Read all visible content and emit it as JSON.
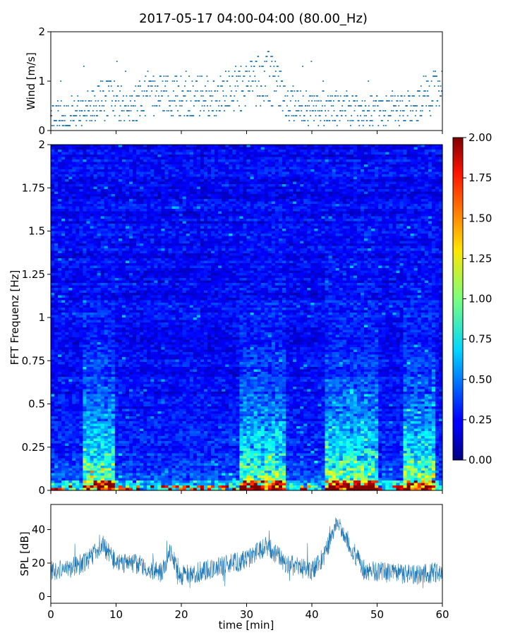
{
  "title": "2017-05-17 04:00-04:00 (80.00_Hz)",
  "chart_data": [
    {
      "type": "scatter",
      "name": "wind",
      "ylabel": "Wind [m/s]",
      "xlim": [
        0,
        60
      ],
      "ylim": [
        0,
        2
      ],
      "yticks": [
        "0",
        "1",
        "2"
      ],
      "color": "#1f77b4",
      "wind_profile_minutes": [
        0,
        3,
        6,
        9,
        12,
        15,
        18,
        22,
        26,
        30,
        33,
        35,
        36,
        40,
        44,
        48,
        52,
        55,
        57,
        60
      ],
      "wind_profile_mean": [
        0.35,
        0.25,
        0.45,
        0.7,
        0.45,
        0.75,
        0.7,
        0.65,
        0.75,
        0.9,
        1.1,
        0.9,
        0.55,
        0.45,
        0.45,
        0.35,
        0.45,
        0.5,
        0.7,
        0.8
      ]
    },
    {
      "type": "heatmap",
      "name": "spectrogram",
      "ylabel": "FFT Frequenz [Hz]",
      "xlim": [
        0,
        60
      ],
      "ylim": [
        0,
        2
      ],
      "yticks": [
        "0",
        "0.25",
        "0.5",
        "0.75",
        "1",
        "1.25",
        "1.5",
        "1.75",
        "2"
      ],
      "colormap": "jet",
      "colorbar_range": [
        0,
        2
      ],
      "colorbar_ticks": [
        "0.00",
        "0.25",
        "0.50",
        "0.75",
        "1.00",
        "1.25",
        "1.50",
        "1.75",
        "2.00"
      ],
      "hotspot_bands_minutes": [
        [
          5,
          10
        ],
        [
          29,
          36
        ],
        [
          42,
          50
        ],
        [
          54,
          59
        ]
      ]
    },
    {
      "type": "line",
      "name": "spl",
      "ylabel": "SPL [dB]",
      "xlabel": "time [min]",
      "xlim": [
        0,
        60
      ],
      "ylim": [
        -4,
        55
      ],
      "yticks": [
        "0",
        "20",
        "40"
      ],
      "xticks": [
        "0",
        "10",
        "20",
        "30",
        "40",
        "50",
        "60"
      ],
      "color": "#1f77b4",
      "spl_profile_minutes": [
        0,
        3,
        5,
        8,
        10,
        14,
        17,
        18.5,
        19.5,
        22,
        26,
        30,
        33,
        36,
        40,
        42,
        44,
        46,
        48,
        52,
        56,
        60
      ],
      "spl_profile_mean": [
        15,
        17,
        20,
        30,
        20,
        19,
        14,
        28,
        12,
        14,
        18,
        22,
        30,
        20,
        15,
        25,
        45,
        30,
        16,
        14,
        13,
        15
      ]
    }
  ]
}
